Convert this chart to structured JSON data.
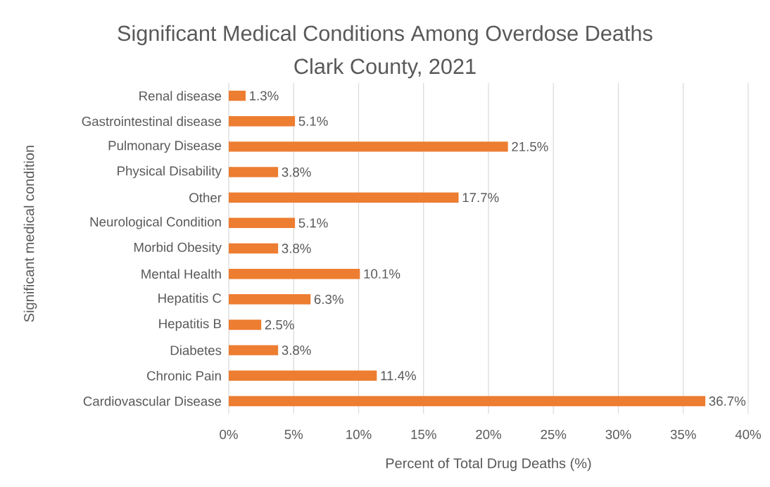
{
  "chart_data": {
    "type": "bar",
    "orientation": "horizontal",
    "title": "Significant Medical Conditions Among Overdose Deaths",
    "subtitle": "Clark County, 2021",
    "xlabel": "Percent of Total Drug Deaths (%)",
    "ylabel": "Significant medical condition",
    "categories": [
      "Renal disease",
      "Gastrointestinal disease",
      "Pulmonary Disease",
      "Physical Disability",
      "Other",
      "Neurological Condition",
      "Morbid Obesity",
      "Mental Health",
      "Hepatitis C",
      "Hepatitis B",
      "Diabetes",
      "Chronic Pain",
      "Cardiovascular Disease"
    ],
    "values": [
      1.3,
      5.1,
      21.5,
      3.8,
      17.7,
      5.1,
      3.8,
      10.1,
      6.3,
      2.5,
      3.8,
      11.4,
      36.7
    ],
    "value_labels": [
      "1.3%",
      "5.1%",
      "21.5%",
      "3.8%",
      "17.7%",
      "5.1%",
      "3.8%",
      "10.1%",
      "6.3%",
      "2.5%",
      "3.8%",
      "11.4%",
      "36.7%"
    ],
    "color": "#ed7d31",
    "xlim": [
      0,
      40
    ],
    "xticks": [
      {
        "value": 0,
        "label": "0%"
      },
      {
        "value": 5,
        "label": "5%"
      },
      {
        "value": 10,
        "label": "10%"
      },
      {
        "value": 15,
        "label": "15%"
      },
      {
        "value": 20,
        "label": "20%"
      },
      {
        "value": 25,
        "label": "25%"
      },
      {
        "value": 30,
        "label": "30%"
      },
      {
        "value": 35,
        "label": "35%"
      },
      {
        "value": 40,
        "label": "40%"
      }
    ],
    "grid": "x"
  }
}
